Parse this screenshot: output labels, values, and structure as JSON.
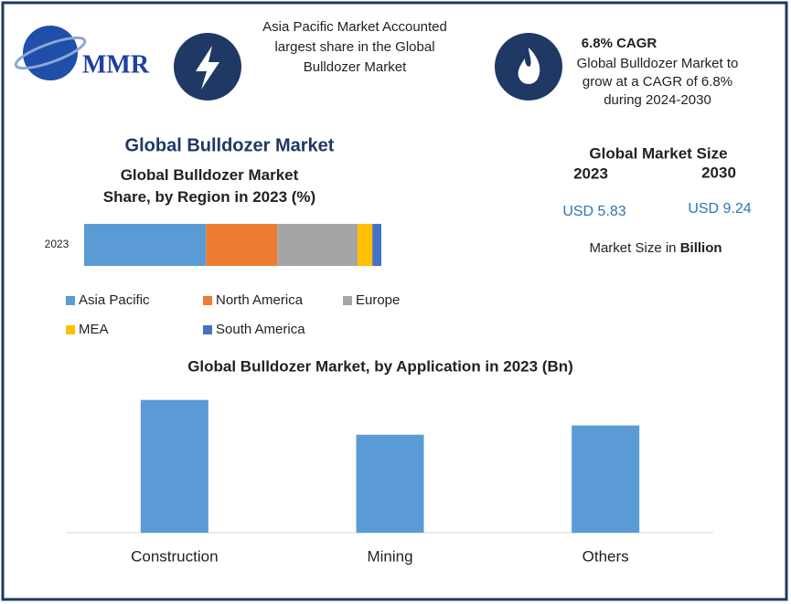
{
  "header": {
    "logo": "MMR",
    "highlight": [
      "Asia Pacific Market Accounted",
      "largest share in the Global",
      "Bulldozer Market"
    ],
    "cagr_title": "6.8% CAGR",
    "cagr_text": [
      "Global Bulldozer Market to",
      "grow at a CAGR of 6.8%",
      "during 2024-2030"
    ]
  },
  "title": "Global Bulldozer Market",
  "market_size": {
    "title": "Global Market Size",
    "years": [
      "2023",
      "2030"
    ],
    "values": [
      "USD 5.83",
      "USD 9.24"
    ],
    "note": "Market Size in",
    "unit": "Billion"
  },
  "chart_data": [
    {
      "type": "stacked-bar",
      "title": [
        "Global Bulldozer Market",
        "Share, by Region in 2023 (%)"
      ],
      "categories": [
        "2023"
      ],
      "xlim": [
        0,
        100
      ],
      "series": [
        {
          "name": "Asia Pacific",
          "color": "#5b9bd5",
          "values": [
            41
          ]
        },
        {
          "name": "North America",
          "color": "#ed7d31",
          "values": [
            24
          ]
        },
        {
          "name": "Europe",
          "color": "#a5a5a5",
          "values": [
            27
          ]
        },
        {
          "name": "MEA",
          "color": "#ffc000",
          "values": [
            5
          ]
        },
        {
          "name": "South America",
          "color": "#4472c4",
          "values": [
            3
          ]
        }
      ]
    },
    {
      "type": "bar",
      "title": "Global Bulldozer Market, by Application in 2023 (Bn)",
      "categories": [
        "Construction",
        "Mining",
        "Others"
      ],
      "values": [
        2.29,
        1.69,
        1.85
      ],
      "color": "#5b9bd5",
      "ylim": [
        0,
        2.6
      ]
    }
  ]
}
